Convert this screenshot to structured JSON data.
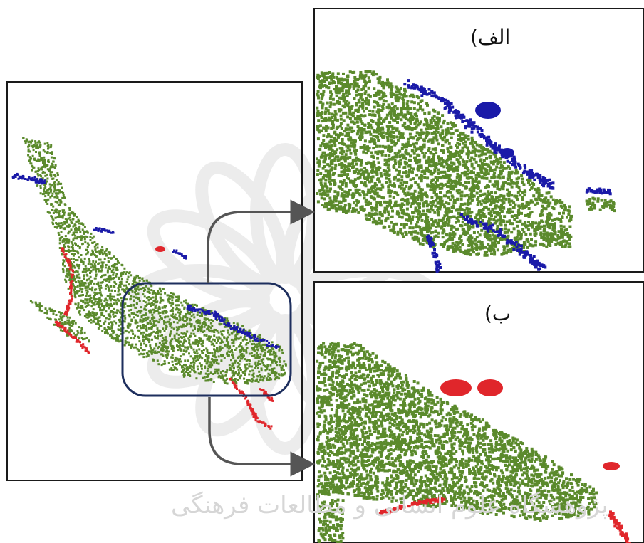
{
  "panels": {
    "alef_label": "الف)",
    "be_label": "ب)"
  },
  "watermark": {
    "text": "پژوهشگاه علوم انسانی و مطالعات فرهنگی"
  },
  "colors": {
    "vegetation": "#5b8a2c",
    "water": "#1a1aa8",
    "change": "#e0262b",
    "callout_frame": "#1e2f5e",
    "arrow": "#555555",
    "panel_border": "#1a1a1a",
    "watermark": "#dedede"
  }
}
